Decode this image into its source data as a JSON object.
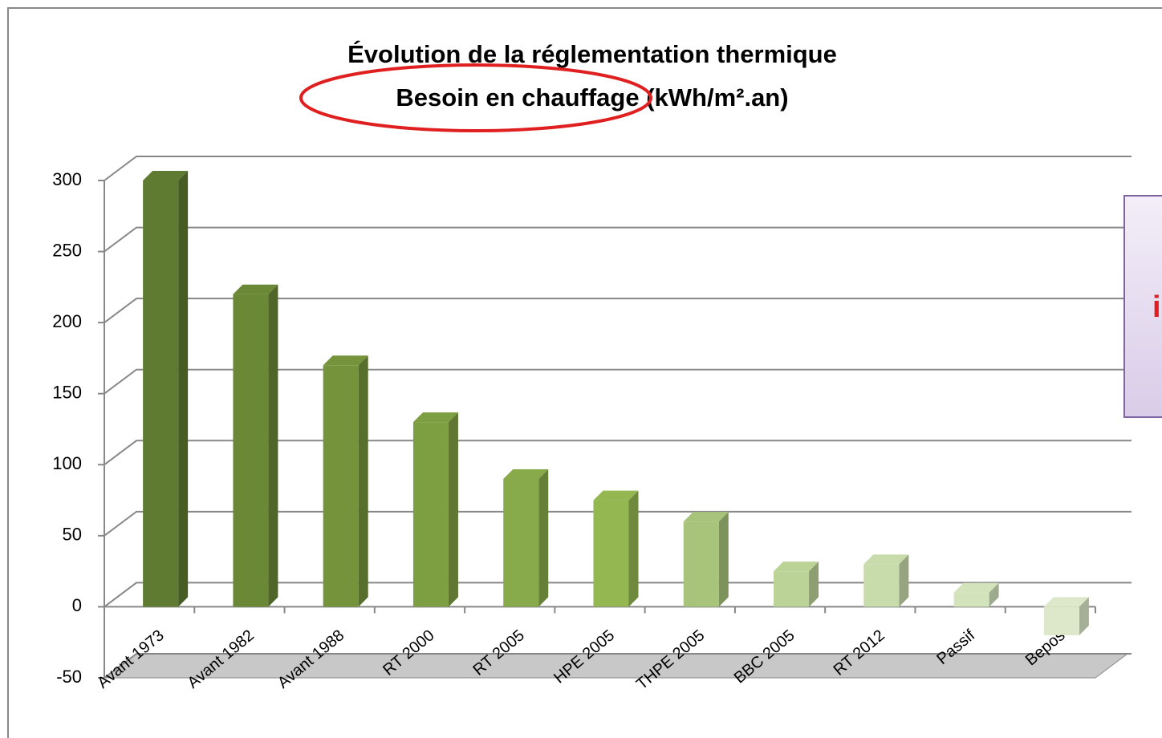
{
  "chart_data": {
    "type": "bar3d",
    "title": "Évolution de la réglementation thermique",
    "subtitle": "Besoin en chauffage (kWh/m².an)",
    "categories": [
      "Avant 1973",
      "Avant 1982",
      "Avant 1988",
      "RT 2000",
      "RT 2005",
      "HPE 2005",
      "THPE 2005",
      "BBC 2005",
      "RT 2012",
      "Passif",
      "Bepos"
    ],
    "values": [
      300,
      220,
      170,
      130,
      90,
      75,
      60,
      25,
      30,
      10,
      -20
    ],
    "colors": [
      "#5f7a31",
      "#6b8836",
      "#74933b",
      "#7e9e42",
      "#89aa4a",
      "#94b752",
      "#a8c47a",
      "#bcd398",
      "#c8dbab",
      "#d3e3bc",
      "#dce8c9"
    ],
    "ylim": [
      -50,
      300
    ],
    "yticks": [
      -50,
      0,
      50,
      100,
      150,
      200,
      250,
      300
    ],
    "grid": true,
    "annotation": "i"
  }
}
